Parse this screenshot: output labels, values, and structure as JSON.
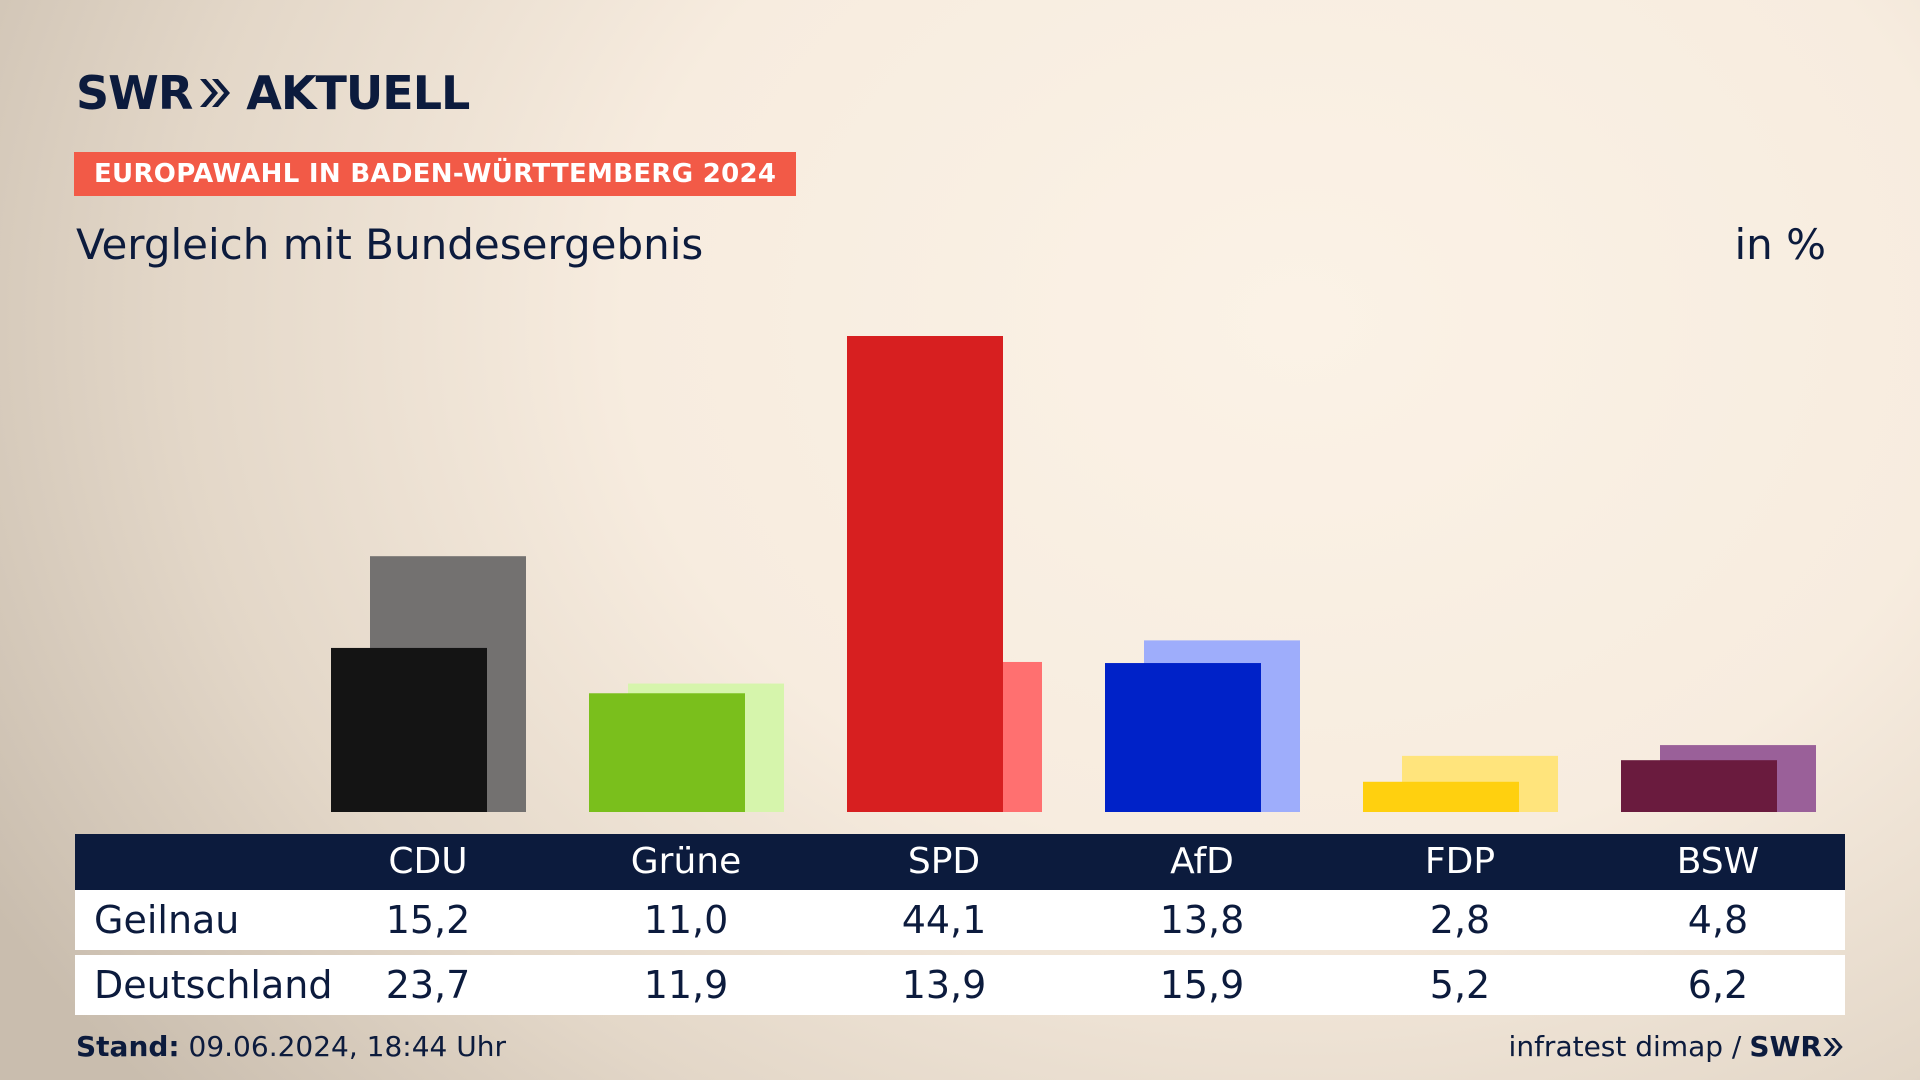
{
  "brand": {
    "logo_left": "SWR",
    "logo_right": "AKTUELL",
    "footer_logo": "SWR"
  },
  "badge": "EUROPAWAHL IN BADEN-WÜRTTEMBERG 2024",
  "colors": {
    "navy": "#0c1b3d",
    "badge": "#f25a47"
  },
  "footer": {
    "stand_label": "Stand:",
    "stand_value": "09.06.2024, 18:44 Uhr",
    "source": "infratest dimap /"
  },
  "chart_data": {
    "type": "bar",
    "title": "Vergleich mit Bundesergebnis",
    "unit_label": "in %",
    "categories": [
      "CDU",
      "Grüne",
      "SPD",
      "AfD",
      "FDP",
      "BSW"
    ],
    "ylim": [
      0,
      44.1
    ],
    "grid": false,
    "series": [
      {
        "name": "Geilnau",
        "values": [
          "15,2",
          "11,0",
          "44,1",
          "13,8",
          "2,8",
          "4,8"
        ],
        "colors": [
          "#141414",
          "#7abf1c",
          "#d71f20",
          "#0022c8",
          "#ffd00f",
          "#6a1b3e"
        ]
      },
      {
        "name": "Deutschland",
        "values": [
          "23,7",
          "11,9",
          "13,9",
          "15,9",
          "5,2",
          "6,2"
        ],
        "colors": [
          "#737170",
          "#d6f5ac",
          "#ff7070",
          "#9eadfb",
          "#ffe47c",
          "#9a6099"
        ]
      }
    ]
  }
}
